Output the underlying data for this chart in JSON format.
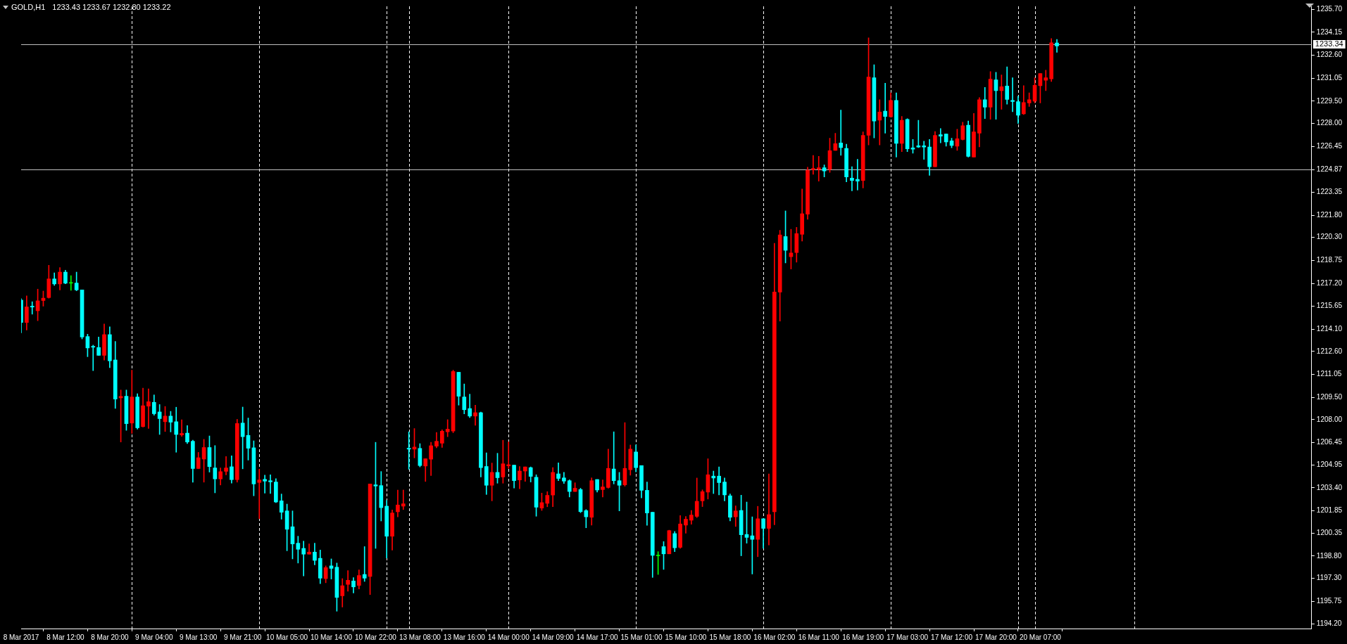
{
  "chart_data": {
    "type": "candlestick",
    "title": "GOLD,H1",
    "subtitle": "1233.43 1233.67 1232.80 1233.22",
    "categories": [
      "8 Mar 2017",
      null,
      null,
      null,
      null,
      null,
      null,
      null,
      "8 Mar 12:00",
      null,
      null,
      null,
      null,
      null,
      null,
      null,
      "8 Mar 20:00",
      null,
      null,
      null,
      null,
      null,
      null,
      null,
      "9 Mar 04:00",
      null,
      null,
      null,
      null,
      null,
      null,
      null,
      "9 Mar 13:00",
      null,
      null,
      null,
      null,
      null,
      null,
      null,
      "9 Mar 21:00",
      null,
      null,
      null,
      null,
      null,
      null,
      null,
      "10 Mar 05:00",
      null,
      null,
      null,
      null,
      null,
      null,
      null,
      "10 Mar 14:00",
      null,
      null,
      null,
      null,
      null,
      null,
      null,
      "10 Mar 22:00",
      null,
      null,
      null,
      null,
      null,
      null,
      null,
      "13 Mar 08:00",
      null,
      null,
      null,
      null,
      null,
      null,
      null,
      "13 Mar 16:00",
      null,
      null,
      null,
      null,
      null,
      null,
      null,
      "14 Mar 00:00",
      null,
      null,
      null,
      null,
      null,
      null,
      null,
      "14 Mar 09:00",
      null,
      null,
      null,
      null,
      null,
      null,
      null,
      "14 Mar 17:00",
      null,
      null,
      null,
      null,
      null,
      null,
      null,
      "15 Mar 01:00",
      null,
      null,
      null,
      null,
      null,
      null,
      null,
      "15 Mar 10:00",
      null,
      null,
      null,
      null,
      null,
      null,
      null,
      "15 Mar 18:00",
      null,
      null,
      null,
      null,
      null,
      null,
      null,
      "16 Mar 02:00",
      null,
      null,
      null,
      null,
      null,
      null,
      null,
      "16 Mar 11:00",
      null,
      null,
      null,
      null,
      null,
      null,
      null,
      "16 Mar 19:00",
      null,
      null,
      null,
      null,
      null,
      null,
      null,
      "17 Mar 03:00",
      null,
      null,
      null,
      null,
      null,
      null,
      null,
      "17 Mar 12:00",
      null,
      null,
      null,
      null,
      null,
      null,
      null,
      "17 Mar 20:00",
      null,
      null,
      null,
      null,
      null,
      null,
      null,
      "20 Mar 07:00",
      null,
      null,
      null,
      null,
      null,
      null,
      null,
      null,
      null,
      null,
      null,
      null,
      null,
      null,
      null,
      null,
      null,
      null,
      null,
      null,
      null,
      null,
      null,
      null,
      null,
      null,
      null,
      null,
      null,
      null,
      null,
      null,
      null,
      null,
      null,
      null,
      null,
      null,
      null,
      null,
      null,
      null,
      null,
      null,
      null,
      null,
      null,
      null,
      null
    ],
    "ohlc": [
      [
        1216.07,
        1216.16,
        1213.86,
        1214.56
      ],
      [
        1214.56,
        1216.35,
        1214.05,
        1215.61
      ],
      [
        1215.66,
        1215.96,
        1215.12,
        1215.6
      ],
      [
        1215.35,
        1216.81,
        1214.68,
        1216.02
      ],
      [
        1216.04,
        1216.68,
        1215.66,
        1216.2
      ],
      [
        1216.24,
        1218.42,
        1216.2,
        1217.5
      ],
      [
        1217.5,
        1217.91,
        1217.06,
        1217.16
      ],
      [
        1217.16,
        1218.27,
        1216.76,
        1217.96
      ],
      [
        1217.96,
        1218.09,
        1217.17,
        1217.21
      ],
      [
        1217.21,
        1217.72,
        1216.73,
        1217.21
      ],
      [
        1217.22,
        1217.96,
        1216.7,
        1216.76
      ],
      [
        1216.76,
        1216.76,
        1213.45,
        1213.58
      ],
      [
        1213.61,
        1213.77,
        1212.25,
        1212.84
      ],
      [
        1212.95,
        1213.03,
        1211.31,
        1212.89
      ],
      [
        1212.87,
        1213.58,
        1212.34,
        1212.34
      ],
      [
        1212.34,
        1214.46,
        1212.02,
        1213.74
      ],
      [
        1213.74,
        1214.27,
        1211.51,
        1211.97
      ],
      [
        1212.03,
        1213.28,
        1208.76,
        1209.39
      ],
      [
        1209.47,
        1210.0,
        1206.49,
        1209.57
      ],
      [
        1209.58,
        1210.0,
        1207.28,
        1207.73
      ],
      [
        1207.77,
        1211.34,
        1207.07,
        1209.53
      ],
      [
        1209.53,
        1209.75,
        1207.36,
        1207.45
      ],
      [
        1207.53,
        1210.13,
        1207.5,
        1208.94
      ],
      [
        1208.91,
        1210.08,
        1207.41,
        1209.21
      ],
      [
        1209.17,
        1209.67,
        1208.3,
        1208.4
      ],
      [
        1208.52,
        1209.02,
        1207.0,
        1208.07
      ],
      [
        1207.86,
        1208.89,
        1207.2,
        1208.24
      ],
      [
        1208.24,
        1208.56,
        1207.17,
        1207.83
      ],
      [
        1207.86,
        1208.84,
        1205.8,
        1207.0
      ],
      [
        1206.97,
        1207.99,
        1206.87,
        1207.07
      ],
      [
        1207.09,
        1207.6,
        1206.38,
        1206.49
      ],
      [
        1206.54,
        1206.62,
        1203.78,
        1204.7
      ],
      [
        1204.7,
        1205.79,
        1204.7,
        1205.43
      ],
      [
        1205.34,
        1206.67,
        1203.78,
        1206.12
      ],
      [
        1206.12,
        1206.9,
        1204.46,
        1204.83
      ],
      [
        1204.74,
        1206.25,
        1203.06,
        1204.0
      ],
      [
        1204.0,
        1204.74,
        1203.59,
        1204.49
      ],
      [
        1204.51,
        1205.51,
        1204.27,
        1204.74
      ],
      [
        1204.82,
        1205.56,
        1203.72,
        1203.95
      ],
      [
        1203.95,
        1208.02,
        1203.78,
        1207.74
      ],
      [
        1207.77,
        1208.85,
        1204.68,
        1206.85
      ],
      [
        1206.94,
        1208.11,
        1205.27,
        1206.07
      ],
      [
        1206.1,
        1206.57,
        1202.86,
        1203.66
      ],
      [
        1203.76,
        1204.65,
        1201.32,
        1203.93
      ],
      [
        1203.97,
        1204.25,
        1203.04,
        1203.85
      ],
      [
        1203.88,
        1204.28,
        1203.01,
        1203.8
      ],
      [
        1203.79,
        1204.02,
        1202.4,
        1202.44
      ],
      [
        1202.52,
        1202.98,
        1201.28,
        1201.75
      ],
      [
        1201.84,
        1202.3,
        1199.15,
        1200.6
      ],
      [
        1200.77,
        1201.84,
        1198.6,
        1199.61
      ],
      [
        1199.66,
        1200.13,
        1198.32,
        1199.25
      ],
      [
        1199.31,
        1199.8,
        1197.45,
        1198.92
      ],
      [
        1198.92,
        1199.62,
        1198.92,
        1199.06
      ],
      [
        1199.06,
        1199.66,
        1198.2,
        1198.5
      ],
      [
        1198.64,
        1199.2,
        1196.93,
        1197.3
      ],
      [
        1197.27,
        1198.13,
        1196.99,
        1198.01
      ],
      [
        1198.13,
        1198.6,
        1197.24,
        1197.96
      ],
      [
        1198.04,
        1198.32,
        1195.07,
        1196.0
      ],
      [
        1196.11,
        1197.27,
        1195.35,
        1196.79
      ],
      [
        1196.88,
        1197.81,
        1196.42,
        1197.16
      ],
      [
        1197.11,
        1197.34,
        1196.3,
        1196.71
      ],
      [
        1196.81,
        1197.86,
        1196.57,
        1197.48
      ],
      [
        1197.55,
        1199.43,
        1197.08,
        1197.3
      ],
      [
        1197.42,
        1203.66,
        1196.19,
        1203.66
      ],
      [
        1203.6,
        1206.47,
        1199.31,
        1203.52
      ],
      [
        1203.55,
        1204.5,
        1201.16,
        1202.06
      ],
      [
        1202.16,
        1202.55,
        1198.66,
        1200.13
      ],
      [
        1200.13,
        1201.9,
        1199.2,
        1201.7
      ],
      [
        1201.78,
        1203.25,
        1201.44,
        1202.24
      ],
      [
        1202.16,
        1203.25,
        1201.93,
        1202.32
      ],
      [
        1206.07,
        1207.18,
        1204.65,
        1206.01
      ],
      [
        1206.01,
        1207.4,
        1205.42,
        1206.15
      ],
      [
        1206.06,
        1206.38,
        1204.81,
        1204.9
      ],
      [
        1204.87,
        1205.36,
        1203.83,
        1205.36
      ],
      [
        1205.33,
        1206.47,
        1204.22,
        1206.24
      ],
      [
        1206.21,
        1207.14,
        1206.1,
        1206.54
      ],
      [
        1206.41,
        1207.31,
        1206.12,
        1207.22
      ],
      [
        1207.18,
        1208.0,
        1206.85,
        1207.36
      ],
      [
        1207.23,
        1211.34,
        1207.12,
        1211.25
      ],
      [
        1211.2,
        1211.2,
        1208.98,
        1209.58
      ],
      [
        1209.53,
        1210.41,
        1208.39,
        1208.67
      ],
      [
        1208.75,
        1209.72,
        1208.14,
        1208.24
      ],
      [
        1208.24,
        1208.98,
        1207.62,
        1208.47
      ],
      [
        1208.47,
        1208.51,
        1204.13,
        1204.76
      ],
      [
        1204.84,
        1205.76,
        1202.95,
        1203.57
      ],
      [
        1203.57,
        1205.07,
        1202.52,
        1204.44
      ],
      [
        1204.44,
        1205.73,
        1203.71,
        1204.08
      ],
      [
        1204.13,
        1206.61,
        1203.71,
        1205.02
      ],
      [
        1204.88,
        1206.5,
        1204.71,
        1204.96
      ],
      [
        1204.93,
        1204.93,
        1203.38,
        1203.88
      ],
      [
        1203.93,
        1204.84,
        1203.34,
        1204.53
      ],
      [
        1204.53,
        1204.81,
        1203.83,
        1204.81
      ],
      [
        1204.76,
        1204.81,
        1203.79,
        1204.17
      ],
      [
        1204.11,
        1204.28,
        1201.48,
        1202.09
      ],
      [
        1202.03,
        1203.04,
        1201.87,
        1202.4
      ],
      [
        1202.35,
        1203.14,
        1202.12,
        1202.89
      ],
      [
        1202.91,
        1204.76,
        1202.12,
        1204.44
      ],
      [
        1204.34,
        1205.08,
        1203.88,
        1204.03
      ],
      [
        1204.07,
        1204.44,
        1203.69,
        1203.85
      ],
      [
        1203.88,
        1203.94,
        1202.78,
        1203.15
      ],
      [
        1203.15,
        1203.74,
        1203.15,
        1203.37
      ],
      [
        1203.28,
        1203.37,
        1201.72,
        1201.79
      ],
      [
        1201.86,
        1201.93,
        1200.7,
        1201.44
      ],
      [
        1201.41,
        1204.07,
        1200.88,
        1203.88
      ],
      [
        1203.96,
        1203.96,
        1203.11,
        1203.25
      ],
      [
        1203.28,
        1203.93,
        1202.78,
        1203.46
      ],
      [
        1203.42,
        1206.01,
        1203.37,
        1204.71
      ],
      [
        1204.67,
        1207.18,
        1203.66,
        1203.88
      ],
      [
        1203.88,
        1204.44,
        1201.84,
        1203.57
      ],
      [
        1203.6,
        1207.8,
        1203.51,
        1204.71
      ],
      [
        1204.62,
        1206.29,
        1204.25,
        1206.01
      ],
      [
        1205.82,
        1206.29,
        1204.48,
        1204.76
      ],
      [
        1204.9,
        1204.9,
        1202.72,
        1203.23
      ],
      [
        1203.23,
        1203.79,
        1200.87,
        1201.7
      ],
      [
        1201.75,
        1201.75,
        1197.35,
        1198.84
      ],
      [
        1198.81,
        1199.09,
        1197.55,
        1198.81
      ],
      [
        1199.43,
        1199.77,
        1197.89,
        1198.94
      ],
      [
        1198.94,
        1200.54,
        1198.94,
        1200.51
      ],
      [
        1200.31,
        1200.45,
        1199.09,
        1199.35
      ],
      [
        1199.38,
        1201.52,
        1199.31,
        1200.96
      ],
      [
        1200.88,
        1201.47,
        1200.33,
        1201.28
      ],
      [
        1201.21,
        1201.87,
        1200.94,
        1201.56
      ],
      [
        1201.47,
        1204.06,
        1201.39,
        1202.49
      ],
      [
        1202.52,
        1203.26,
        1202.13,
        1203.14
      ],
      [
        1203.11,
        1205.36,
        1202.64,
        1204.28
      ],
      [
        1204.19,
        1204.53,
        1203.01,
        1204.06
      ],
      [
        1204.19,
        1204.81,
        1202.92,
        1203.75
      ],
      [
        1203.79,
        1204.06,
        1202.52,
        1202.92
      ],
      [
        1202.86,
        1202.98,
        1201.16,
        1201.41
      ],
      [
        1201.44,
        1202.18,
        1200.79,
        1201.84
      ],
      [
        1201.87,
        1202.9,
        1198.81,
        1200.23
      ],
      [
        1200.25,
        1202.44,
        1199.66,
        1200.05
      ],
      [
        1200.16,
        1201.44,
        1197.58,
        1199.92
      ],
      [
        1199.92,
        1202.15,
        1198.75,
        1201.31
      ],
      [
        1201.31,
        1201.31,
        1199.31,
        1200.66
      ],
      [
        1200.66,
        1204.34,
        1199.54,
        1201.59
      ],
      [
        1201.78,
        1219.9,
        1200.9,
        1216.62
      ],
      [
        1216.61,
        1220.78,
        1214.65,
        1220.47
      ],
      [
        1220.36,
        1222.09,
        1218.58,
        1219.43
      ],
      [
        1219.0,
        1220.85,
        1218.17,
        1219.25
      ],
      [
        1219.28,
        1220.98,
        1218.63,
        1220.56
      ],
      [
        1220.51,
        1223.57,
        1220.05,
        1221.9
      ],
      [
        1221.87,
        1225.04,
        1221.52,
        1224.84
      ],
      [
        1224.87,
        1225.84,
        1224.56,
        1224.96
      ],
      [
        1224.89,
        1225.77,
        1224.1,
        1225.01
      ],
      [
        1225.01,
        1225.2,
        1224.38,
        1224.79
      ],
      [
        1224.89,
        1227.0,
        1224.69,
        1226.15
      ],
      [
        1226.18,
        1227.33,
        1226.18,
        1226.63
      ],
      [
        1226.68,
        1228.9,
        1225.84,
        1226.37
      ],
      [
        1226.31,
        1226.59,
        1224.05,
        1224.38
      ],
      [
        1224.3,
        1225.07,
        1223.45,
        1224.14
      ],
      [
        1224.22,
        1225.57,
        1223.5,
        1224.1
      ],
      [
        1224.14,
        1227.42,
        1223.64,
        1227.19
      ],
      [
        1227.19,
        1233.77,
        1226.54,
        1231.13
      ],
      [
        1231.08,
        1231.96,
        1227.02,
        1228.16
      ],
      [
        1228.21,
        1229.6,
        1226.54,
        1228.76
      ],
      [
        1228.82,
        1230.71,
        1227.34,
        1228.47
      ],
      [
        1228.44,
        1230.06,
        1228.44,
        1229.55
      ],
      [
        1229.55,
        1230.06,
        1225.72,
        1226.65
      ],
      [
        1226.65,
        1228.47,
        1226.09,
        1228.21
      ],
      [
        1228.27,
        1228.32,
        1226.09,
        1226.28
      ],
      [
        1226.35,
        1226.91,
        1225.98,
        1226.26
      ],
      [
        1226.49,
        1228.21,
        1226.37,
        1226.4
      ],
      [
        1226.49,
        1226.8,
        1225.57,
        1226.4
      ],
      [
        1226.4,
        1226.91,
        1224.49,
        1225.07
      ],
      [
        1225.07,
        1227.45,
        1225.07,
        1227.19
      ],
      [
        1227.23,
        1227.65,
        1226.69,
        1227.14
      ],
      [
        1227.28,
        1227.28,
        1226.46,
        1226.74
      ],
      [
        1226.82,
        1227.0,
        1226.35,
        1226.51
      ],
      [
        1226.46,
        1227.6,
        1226.18,
        1226.96
      ],
      [
        1226.91,
        1228.08,
        1226.88,
        1227.84
      ],
      [
        1227.88,
        1228.16,
        1225.72,
        1225.77
      ],
      [
        1225.72,
        1228.67,
        1225.72,
        1227.42
      ],
      [
        1227.34,
        1229.74,
        1226.41,
        1229.6
      ],
      [
        1229.6,
        1230.43,
        1228.32,
        1229.09
      ],
      [
        1229.09,
        1231.5,
        1228.27,
        1230.99
      ],
      [
        1230.94,
        1231.45,
        1228.27,
        1230.21
      ],
      [
        1230.21,
        1231.27,
        1228.95,
        1230.48
      ],
      [
        1230.52,
        1231.82,
        1229.29,
        1229.61
      ],
      [
        1229.55,
        1231.08,
        1228.78,
        1229.47
      ],
      [
        1229.46,
        1229.83,
        1227.99,
        1228.55
      ],
      [
        1228.64,
        1230.54,
        1228.59,
        1229.41
      ],
      [
        1229.38,
        1230.06,
        1229.14,
        1229.6
      ],
      [
        1229.5,
        1231.08,
        1229.38,
        1230.57
      ],
      [
        1230.54,
        1231.36,
        1229.38,
        1231.36
      ],
      [
        1230.91,
        1231.59,
        1230.21,
        1231.08
      ],
      [
        1231.0,
        1233.72,
        1230.82,
        1233.44
      ],
      [
        1233.43,
        1233.67,
        1232.8,
        1233.22
      ],
      null,
      null,
      null,
      null,
      null,
      null,
      null,
      null,
      null,
      null,
      null,
      null,
      null,
      null,
      null,
      null,
      null,
      null,
      null,
      null,
      null,
      null,
      null,
      null,
      null,
      null,
      null,
      null,
      null,
      null,
      null,
      null,
      null,
      null,
      null,
      null,
      null,
      null,
      null,
      null,
      null,
      null,
      null,
      null,
      null,
      null
    ],
    "colors": [
      "#00ffff",
      "#ff0000",
      "#00ffff",
      "#ff0000",
      "#ff0000",
      "#ff0000",
      "#00ffff",
      "#ff0000",
      "#00ffff",
      "#00ff00",
      "#00ffff",
      "#00ffff",
      "#00ffff",
      "#00ffff",
      "#00ffff",
      "#ff0000",
      "#00ffff",
      "#00ffff",
      "#ff0000",
      "#00ffff",
      "#ff0000",
      "#00ffff",
      "#ff0000",
      "#ff0000",
      "#00ffff",
      "#00ffff",
      "#ff0000",
      "#00ffff",
      "#00ffff",
      "#ff0000",
      "#00ffff",
      "#00ffff",
      "#ff0000",
      "#ff0000",
      "#00ffff",
      "#00ffff",
      "#ff0000",
      "#ff0000",
      "#00ffff",
      "#ff0000",
      "#00ffff",
      "#00ffff",
      "#00ffff",
      "#ff0000",
      "#00ffff",
      "#00ffff",
      "#00ffff",
      "#00ffff",
      "#00ffff",
      "#00ffff",
      "#00ffff",
      "#00ffff",
      "#ff0000",
      "#00ffff",
      "#00ffff",
      "#ff0000",
      "#00ffff",
      "#00ffff",
      "#ff0000",
      "#ff0000",
      "#00ffff",
      "#ff0000",
      "#00ffff",
      "#ff0000",
      "#00ffff",
      "#00ffff",
      "#00ffff",
      "#ff0000",
      "#ff0000",
      "#ff0000",
      "#00ffff",
      "#ff0000",
      "#00ffff",
      "#ff0000",
      "#ff0000",
      "#ff0000",
      "#ff0000",
      "#ff0000",
      "#ff0000",
      "#00ffff",
      "#00ffff",
      "#00ffff",
      "#ff0000",
      "#00ffff",
      "#00ffff",
      "#ff0000",
      "#00ffff",
      "#ff0000",
      "#ff0000",
      "#00ffff",
      "#ff0000",
      "#ff0000",
      "#00ffff",
      "#00ffff",
      "#ff0000",
      "#ff0000",
      "#ff0000",
      "#00ffff",
      "#00ffff",
      "#00ffff",
      "#ff0000",
      "#00ffff",
      "#00ffff",
      "#ff0000",
      "#00ffff",
      "#ff0000",
      "#ff0000",
      "#00ffff",
      "#00ffff",
      "#ff0000",
      "#ff0000",
      "#00ffff",
      "#00ffff",
      "#00ffff",
      "#00ffff",
      "#00ff00",
      "#00ffff",
      "#ff0000",
      "#00ffff",
      "#ff0000",
      "#ff0000",
      "#ff0000",
      "#ff0000",
      "#ff0000",
      "#ff0000",
      "#00ffff",
      "#00ffff",
      "#00ffff",
      "#00ffff",
      "#ff0000",
      "#00ffff",
      "#00ffff",
      "#00ffff",
      "#ff0000",
      "#00ffff",
      "#ff0000",
      "#ff0000",
      "#ff0000",
      "#00ffff",
      "#ff0000",
      "#ff0000",
      "#ff0000",
      "#ff0000",
      "#ff0000",
      "#ff0000",
      "#00ffff",
      "#ff0000",
      "#ff0000",
      "#00ffff",
      "#00ffff",
      "#00ffff",
      "#00ffff",
      "#ff0000",
      "#ff0000",
      "#00ffff",
      "#ff0000",
      "#00ffff",
      "#ff0000",
      "#00ffff",
      "#ff0000",
      "#00ffff",
      "#00ffff",
      "#00ffff",
      "#00ffff",
      "#00ffff",
      "#ff0000",
      "#00ffff",
      "#00ffff",
      "#00ffff",
      "#ff0000",
      "#ff0000",
      "#00ffff",
      "#ff0000",
      "#ff0000",
      "#00ffff",
      "#ff0000",
      "#00ffff",
      "#ff0000",
      "#00ffff",
      "#00ffff",
      "#00ffff",
      "#ff0000",
      "#ff0000",
      "#ff0000",
      "#ff0000",
      "#ff0000",
      "#ff0000",
      "#00ffff",
      null,
      null,
      null,
      null,
      null,
      null,
      null,
      null,
      null,
      null,
      null,
      null,
      null,
      null,
      null,
      null,
      null,
      null,
      null,
      null,
      null,
      null,
      null,
      null,
      null,
      null,
      null,
      null,
      null,
      null,
      null,
      null,
      null,
      null,
      null,
      null,
      null,
      null,
      null,
      null,
      null,
      null,
      null,
      null,
      null,
      null
    ],
    "ylim": [
      1193.9,
      1235.9
    ],
    "yticks": [
      {
        "value": 1194.2,
        "label": "1194.20"
      },
      {
        "value": 1195.75,
        "label": "1195.75"
      },
      {
        "value": 1197.3,
        "label": "1197.30"
      },
      {
        "value": 1198.8,
        "label": "1198.80"
      },
      {
        "value": 1200.35,
        "label": "1200.35"
      },
      {
        "value": 1201.85,
        "label": "1201.85"
      },
      {
        "value": 1203.4,
        "label": "1203.40"
      },
      {
        "value": 1204.95,
        "label": "1204.95"
      },
      {
        "value": 1206.45,
        "label": "1206.45"
      },
      {
        "value": 1208,
        "label": "1208.00"
      },
      {
        "value": 1209.5,
        "label": "1209.50"
      },
      {
        "value": 1211.05,
        "label": "1211.05"
      },
      {
        "value": 1212.6,
        "label": "1212.60"
      },
      {
        "value": 1214.1,
        "label": "1214.10"
      },
      {
        "value": 1215.65,
        "label": "1215.65"
      },
      {
        "value": 1217.2,
        "label": "1217.20"
      },
      {
        "value": 1218.75,
        "label": "1218.75"
      },
      {
        "value": 1220.3,
        "label": "1220.30"
      },
      {
        "value": 1221.8,
        "label": "1221.80"
      },
      {
        "value": 1223.35,
        "label": "1223.35"
      },
      {
        "value": 1224.87,
        "label": "1224.87"
      },
      {
        "value": 1226.45,
        "label": "1226.45"
      },
      {
        "value": 1228,
        "label": "1228.00"
      },
      {
        "value": 1229.5,
        "label": "1229.50"
      },
      {
        "value": 1231.05,
        "label": "1231.05"
      },
      {
        "value": 1232.6,
        "label": "1232.60"
      },
      {
        "value": 1234.15,
        "label": "1234.15"
      },
      {
        "value": 1235.7,
        "label": "1235.70"
      }
    ],
    "ref_lines": [
      {
        "axis": "y",
        "value": 1233.34,
        "label": "1233.34",
        "color": "#c0c0c0"
      },
      {
        "axis": "y",
        "value": 1224.87,
        "color": "#c0c0c0"
      }
    ]
  }
}
